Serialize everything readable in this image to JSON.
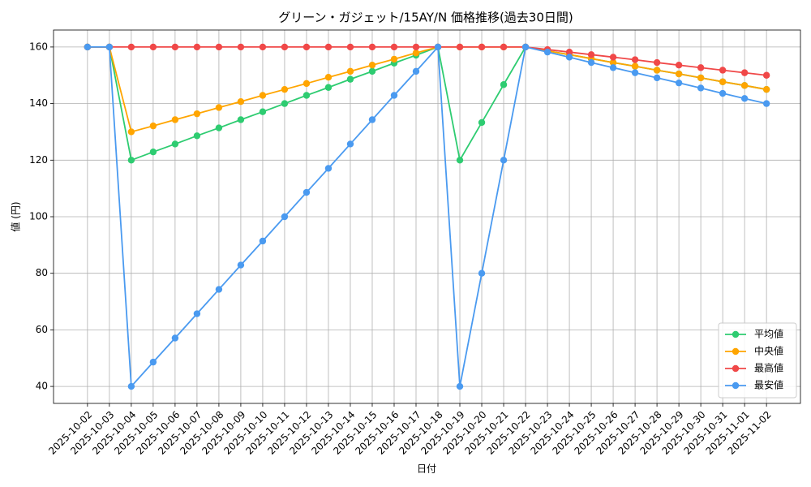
{
  "chart_data": {
    "type": "line",
    "title": "グリーン・ガジェット/15AY/N 価格推移(過去30日間)",
    "x_label": "日付",
    "y_label": "値 (円)",
    "categories": [
      "2025-10-02",
      "2025-10-03",
      "2025-10-04",
      "2025-10-05",
      "2025-10-06",
      "2025-10-07",
      "2025-10-08",
      "2025-10-09",
      "2025-10-10",
      "2025-10-11",
      "2025-10-12",
      "2025-10-13",
      "2025-10-14",
      "2025-10-15",
      "2025-10-16",
      "2025-10-17",
      "2025-10-18",
      "2025-10-19",
      "2025-10-20",
      "2025-10-21",
      "2025-10-22",
      "2025-10-23",
      "2025-10-24",
      "2025-10-25",
      "2025-10-26",
      "2025-10-27",
      "2025-10-28",
      "2025-10-29",
      "2025-10-30",
      "2025-10-31",
      "2025-11-01",
      "2025-11-02"
    ],
    "series": [
      {
        "name": "平均値",
        "color": "#2ecc71",
        "values": [
          160,
          160,
          120,
          122.9,
          125.7,
          128.6,
          131.4,
          134.3,
          137.1,
          140,
          142.9,
          145.7,
          148.6,
          151.4,
          154.3,
          157.1,
          160,
          120,
          133.3,
          146.7,
          160,
          158.6,
          157.3,
          155.9,
          154.5,
          153.2,
          151.8,
          150.5,
          149.1,
          147.7,
          146.4,
          145
        ]
      },
      {
        "name": "中央値",
        "color": "#ffa500",
        "values": [
          160,
          160,
          130,
          132.1,
          134.3,
          136.4,
          138.6,
          140.7,
          142.9,
          145,
          147.1,
          149.3,
          151.4,
          153.6,
          155.7,
          157.9,
          160,
          160,
          160,
          160,
          160,
          158.6,
          157.3,
          155.9,
          154.5,
          153.2,
          151.8,
          150.5,
          149.1,
          147.7,
          146.4,
          145
        ]
      },
      {
        "name": "最高値",
        "color": "#f04848",
        "values": [
          160,
          160,
          160,
          160,
          160,
          160,
          160,
          160,
          160,
          160,
          160,
          160,
          160,
          160,
          160,
          160,
          160,
          160,
          160,
          160,
          160,
          159.1,
          158.2,
          157.3,
          156.4,
          155.5,
          154.5,
          153.6,
          152.7,
          151.8,
          150.9,
          150
        ]
      },
      {
        "name": "最安値",
        "color": "#4a9af0",
        "values": [
          160,
          160,
          40,
          48.6,
          57.1,
          65.7,
          74.3,
          82.9,
          91.4,
          100,
          108.6,
          117.1,
          125.7,
          134.3,
          142.9,
          151.4,
          160,
          40,
          80,
          120,
          160,
          158.2,
          156.4,
          154.5,
          152.7,
          150.9,
          149.1,
          147.3,
          145.5,
          143.6,
          141.8,
          140
        ]
      }
    ],
    "ylim": [
      34,
      166
    ],
    "yticks": [
      40,
      60,
      80,
      100,
      120,
      140,
      160
    ],
    "grid": true,
    "legend": "lower right"
  }
}
